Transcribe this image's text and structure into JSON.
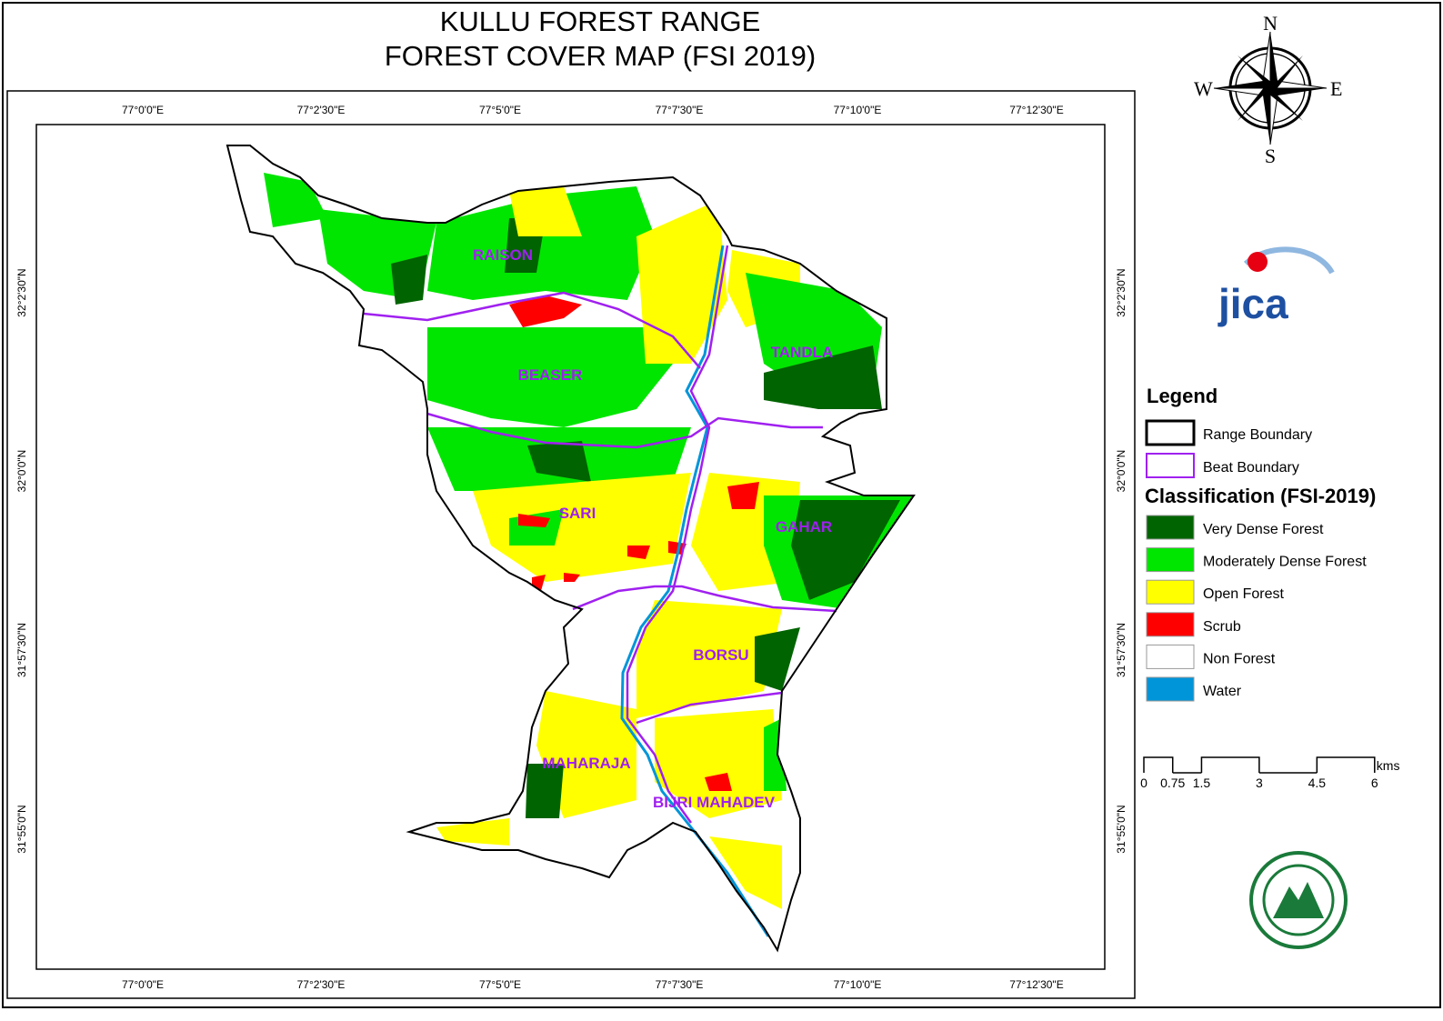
{
  "title": [
    "KULLU FOREST RANGE",
    "FOREST COVER MAP (FSI 2019)"
  ],
  "compass": {
    "n": "N",
    "s": "S",
    "e": "E",
    "w": "W"
  },
  "logo": "jica",
  "map": {
    "longitudes": [
      "77°0'0\"E",
      "77°2'30\"E",
      "77°5'0\"E",
      "77°7'30\"E",
      "77°10'0\"E",
      "77°12'30\"E"
    ],
    "latitudes": [
      "32°2'30\"N",
      "32°0'0\"N",
      "31°57'30\"N",
      "31°55'0\"N"
    ],
    "beats": [
      "RAISON",
      "BEASER",
      "TANDLA",
      "SARI",
      "GAHAR",
      "BORSU",
      "MAHARAJA",
      "BIJRI MAHADEV"
    ]
  },
  "legend": {
    "title": "Legend",
    "boundaries": [
      "Range Boundary",
      "Beat Boundary"
    ],
    "classification_title": "Classification (FSI-2019)",
    "classes": [
      {
        "label": "Very Dense Forest",
        "color": "#006400"
      },
      {
        "label": "Moderately Dense Forest",
        "color": "#00e600"
      },
      {
        "label": "Open Forest",
        "color": "#ffff00"
      },
      {
        "label": "Scrub",
        "color": "#ff0000"
      },
      {
        "label": "Non Forest",
        "color": "#ffffff"
      },
      {
        "label": "Water",
        "color": "#0095d9"
      }
    ]
  },
  "scale": {
    "ticks": [
      0,
      0.75,
      1.5,
      3,
      4.5,
      6
    ],
    "unit": "kms"
  }
}
